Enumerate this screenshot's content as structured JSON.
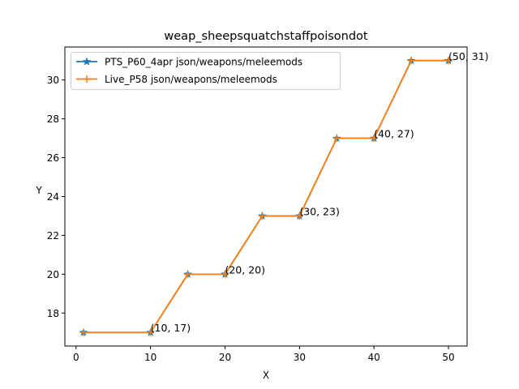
{
  "chart_data": {
    "type": "line",
    "title": "weap_sheepsquatchstaffpoisondot",
    "xlabel": "X",
    "ylabel": "Y",
    "xlim": [
      -1.5,
      52.5
    ],
    "ylim": [
      16.3,
      31.7
    ],
    "xticks": [
      0,
      10,
      20,
      30,
      40,
      50
    ],
    "yticks": [
      18,
      20,
      22,
      24,
      26,
      28,
      30
    ],
    "grid": false,
    "legend_position": "top-left",
    "x": [
      1,
      10,
      15,
      20,
      25,
      30,
      35,
      40,
      45,
      50
    ],
    "series": [
      {
        "name": "PTS_P60_4apr json/weapons/meleemods",
        "color": "#1f77b4",
        "marker": "star",
        "values": [
          17,
          17,
          20,
          20,
          23,
          23,
          27,
          27,
          31,
          31
        ]
      },
      {
        "name": "Live_P58 json/weapons/meleemods",
        "color": "#ff7f0e",
        "marker": "plus",
        "values": [
          17,
          17,
          20,
          20,
          23,
          23,
          27,
          27,
          31,
          31
        ]
      }
    ],
    "annotations": [
      {
        "text": "(10, 17)",
        "x": 10,
        "y": 17
      },
      {
        "text": "(20, 20)",
        "x": 20,
        "y": 20
      },
      {
        "text": "(30, 23)",
        "x": 30,
        "y": 23
      },
      {
        "text": "(40, 27)",
        "x": 40,
        "y": 27
      },
      {
        "text": "(50, 31)",
        "x": 50,
        "y": 31
      }
    ]
  }
}
